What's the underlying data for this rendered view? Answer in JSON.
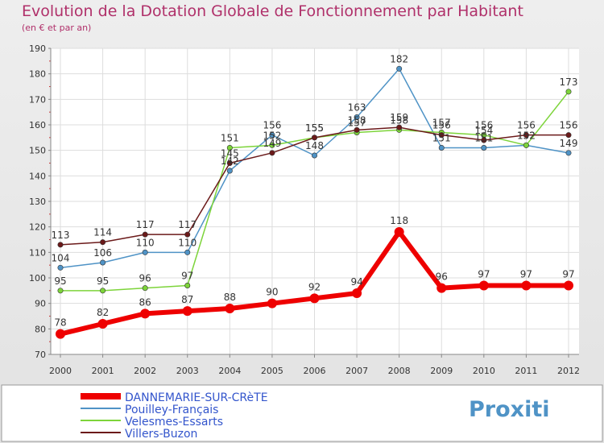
{
  "chart_data": {
    "type": "line",
    "title": "Evolution de la Dotation Globale de Fonctionnement par Habitant",
    "subtitle": "(en € et par an)",
    "xlabel": "",
    "ylabel": "",
    "x": [
      "2000",
      "2001",
      "2002",
      "2003",
      "2004",
      "2005",
      "2006",
      "2007",
      "2008",
      "2009",
      "2010",
      "2011",
      "2012"
    ],
    "ylim": [
      70,
      190
    ],
    "yticks": [
      70,
      80,
      90,
      100,
      110,
      120,
      130,
      140,
      150,
      160,
      170,
      180,
      190
    ],
    "grid": true,
    "legend_position": "bottom-left",
    "series": [
      {
        "name": "DANNEMARIE-SUR-CRèTE",
        "color": "#ee0000",
        "values": [
          78,
          82,
          86,
          87,
          88,
          90,
          92,
          94,
          118,
          96,
          97,
          97,
          97
        ]
      },
      {
        "name": "Pouilley-Français",
        "color": "#4f93c6",
        "values": [
          104,
          106,
          110,
          110,
          142,
          156,
          148,
          163,
          182,
          151,
          151,
          152,
          149
        ]
      },
      {
        "name": "Velesmes-Essarts",
        "color": "#7dd43a",
        "values": [
          95,
          95,
          96,
          97,
          151,
          152,
          155,
          157,
          158,
          157,
          156,
          152,
          173
        ]
      },
      {
        "name": "Villers-Buzon",
        "color": "#6b1a1a",
        "values": [
          113,
          114,
          117,
          117,
          145,
          149,
          155,
          158,
          159,
          156,
          154,
          156,
          156
        ]
      }
    ]
  },
  "logo": {
    "text": "Proxiti"
  }
}
